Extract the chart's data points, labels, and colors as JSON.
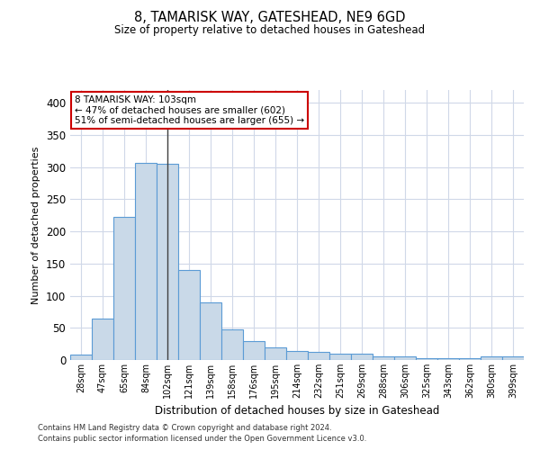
{
  "title1": "8, TAMARISK WAY, GATESHEAD, NE9 6GD",
  "title2": "Size of property relative to detached houses in Gateshead",
  "xlabel": "Distribution of detached houses by size in Gateshead",
  "ylabel": "Number of detached properties",
  "categories": [
    "28sqm",
    "47sqm",
    "65sqm",
    "84sqm",
    "102sqm",
    "121sqm",
    "139sqm",
    "158sqm",
    "176sqm",
    "195sqm",
    "214sqm",
    "232sqm",
    "251sqm",
    "269sqm",
    "288sqm",
    "306sqm",
    "325sqm",
    "343sqm",
    "362sqm",
    "380sqm",
    "399sqm"
  ],
  "values": [
    8,
    65,
    222,
    307,
    305,
    140,
    90,
    47,
    30,
    20,
    14,
    12,
    10,
    10,
    5,
    5,
    3,
    3,
    3,
    5,
    5
  ],
  "bar_color": "#c9d9e8",
  "bar_edge_color": "#5b9bd5",
  "highlight_index": 4,
  "highlight_line_color": "#404040",
  "annotation_text": "8 TAMARISK WAY: 103sqm\n← 47% of detached houses are smaller (602)\n51% of semi-detached houses are larger (655) →",
  "annotation_box_color": "#ffffff",
  "annotation_box_edge_color": "#cc0000",
  "ylim": [
    0,
    420
  ],
  "yticks": [
    0,
    50,
    100,
    150,
    200,
    250,
    300,
    350,
    400
  ],
  "footer1": "Contains HM Land Registry data © Crown copyright and database right 2024.",
  "footer2": "Contains public sector information licensed under the Open Government Licence v3.0.",
  "background_color": "#ffffff",
  "grid_color": "#d0d8e8"
}
